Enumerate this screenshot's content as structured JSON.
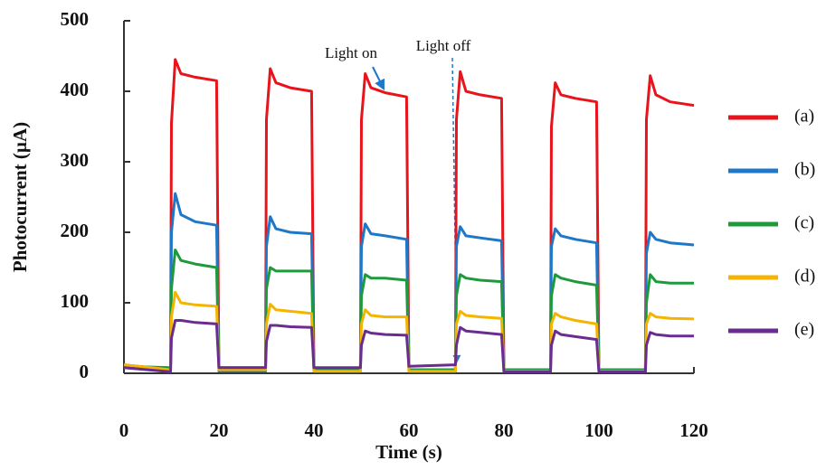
{
  "chart_data": {
    "type": "line",
    "x_label": "Time (s)",
    "y_label": "Photocurrent (µA)",
    "x": [
      0,
      9.8,
      10,
      10.8,
      12,
      15,
      19.5,
      20,
      29.8,
      30,
      30.8,
      32,
      35,
      39.5,
      40,
      49.8,
      50,
      50.8,
      52,
      55,
      59.5,
      60,
      69.8,
      70,
      70.8,
      72,
      75,
      79.5,
      80,
      89.8,
      90,
      90.8,
      92,
      95,
      99.5,
      100,
      109.8,
      110,
      110.8,
      112,
      115,
      120
    ],
    "series": [
      {
        "name": "(a)",
        "color": "#e8141c",
        "values": [
          12,
          5,
          355,
          445,
          425,
          420,
          415,
          5,
          5,
          360,
          432,
          412,
          405,
          400,
          5,
          5,
          360,
          425,
          405,
          398,
          392,
          5,
          5,
          360,
          428,
          400,
          395,
          390,
          5,
          5,
          350,
          412,
          395,
          390,
          385,
          5,
          5,
          360,
          422,
          395,
          385,
          380
        ]
      },
      {
        "name": "(b)",
        "color": "#1f77c8",
        "values": [
          8,
          3,
          200,
          255,
          225,
          215,
          210,
          3,
          3,
          180,
          222,
          205,
          200,
          198,
          3,
          3,
          180,
          212,
          198,
          195,
          190,
          3,
          3,
          180,
          208,
          195,
          192,
          188,
          3,
          3,
          180,
          205,
          195,
          190,
          185,
          3,
          3,
          170,
          200,
          190,
          185,
          182
        ]
      },
      {
        "name": "(c)",
        "color": "#1e9a3c",
        "values": [
          10,
          8,
          120,
          175,
          160,
          155,
          150,
          8,
          8,
          120,
          150,
          145,
          145,
          145,
          5,
          5,
          110,
          140,
          135,
          135,
          132,
          5,
          5,
          110,
          140,
          135,
          132,
          130,
          5,
          5,
          110,
          140,
          135,
          130,
          125,
          5,
          5,
          100,
          140,
          130,
          128,
          128
        ]
      },
      {
        "name": "(d)",
        "color": "#f4b400",
        "values": [
          12,
          5,
          80,
          115,
          100,
          97,
          95,
          5,
          5,
          70,
          98,
          90,
          88,
          85,
          3,
          3,
          70,
          90,
          82,
          80,
          80,
          3,
          3,
          70,
          88,
          82,
          80,
          78,
          3,
          3,
          70,
          85,
          80,
          75,
          70,
          3,
          3,
          70,
          85,
          80,
          78,
          77
        ]
      },
      {
        "name": "(e)",
        "color": "#6a2c91",
        "values": [
          8,
          2,
          50,
          75,
          75,
          72,
          70,
          8,
          8,
          45,
          68,
          68,
          66,
          65,
          8,
          8,
          40,
          60,
          57,
          55,
          54,
          10,
          12,
          40,
          65,
          60,
          58,
          55,
          2,
          2,
          40,
          60,
          55,
          52,
          48,
          2,
          2,
          40,
          58,
          55,
          53,
          53
        ]
      }
    ],
    "xlim": [
      0,
      120
    ],
    "xticks": [
      0,
      20,
      40,
      60,
      80,
      100,
      120
    ],
    "ylim": [
      0,
      500
    ],
    "yticks": [
      0,
      100,
      200,
      300,
      400,
      500
    ],
    "legend": "right",
    "annotations": [
      "Light on",
      "Light off"
    ]
  }
}
